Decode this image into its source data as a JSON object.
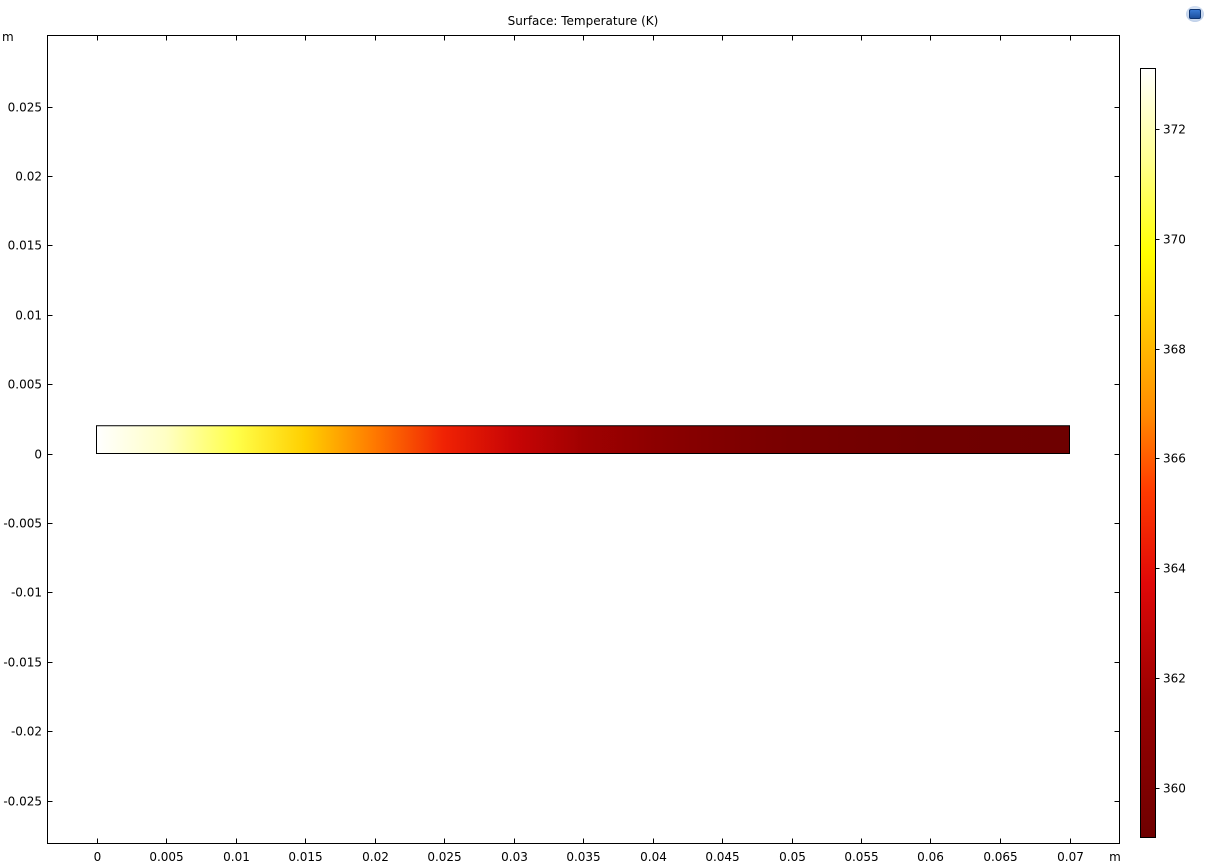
{
  "chart_data": {
    "type": "heatmap",
    "title": "Surface: Temperature (K)",
    "x_unit": "m",
    "y_unit": "m",
    "xlim": [
      -0.0035,
      0.0735
    ],
    "ylim": [
      -0.0281,
      0.0299
    ],
    "x_ticks": [
      0,
      0.005,
      0.01,
      0.015,
      0.02,
      0.025,
      0.03,
      0.035,
      0.04,
      0.045,
      0.05,
      0.055,
      0.06,
      0.065,
      0.07
    ],
    "x_tick_labels": [
      "0",
      "0.005",
      "0.01",
      "0.015",
      "0.02",
      "0.025",
      "0.03",
      "0.035",
      "0.04",
      "0.045",
      "0.05",
      "0.055",
      "0.06",
      "0.065",
      "0.07"
    ],
    "y_ticks": [
      0.025,
      0.02,
      0.015,
      0.01,
      0.005,
      0,
      -0.005,
      -0.01,
      -0.015,
      -0.02,
      -0.025
    ],
    "y_tick_labels": [
      "0.025",
      "0.02",
      "0.015",
      "0.01",
      "0.005",
      "0",
      "-0.005",
      "-0.01",
      "-0.015",
      "-0.02",
      "-0.025"
    ],
    "domain": {
      "x": [
        0,
        0.07
      ],
      "y": [
        0,
        0.002
      ]
    },
    "temperature_profile": {
      "x": [
        0,
        0.005,
        0.01,
        0.015,
        0.02,
        0.025,
        0.03,
        0.035,
        0.04,
        0.045,
        0.05,
        0.055,
        0.06,
        0.065,
        0.07
      ],
      "T": [
        373.1,
        372.2,
        370.6,
        368.6,
        366.5,
        364.6,
        363.0,
        361.8,
        360.9,
        360.2,
        359.7,
        359.4,
        359.2,
        359.15,
        359.1
      ]
    },
    "colorbar": {
      "min": 359.1,
      "max": 373.1,
      "ticks": [
        360,
        362,
        364,
        366,
        368,
        370,
        372
      ],
      "tick_labels": [
        "360",
        "362",
        "364",
        "366",
        "368",
        "370",
        "372"
      ],
      "colormap": "ThermalLight",
      "colormap_stops": [
        {
          "t": 0.0,
          "color": "#6e0000"
        },
        {
          "t": 0.18,
          "color": "#9a0000"
        },
        {
          "t": 0.33,
          "color": "#e00808"
        },
        {
          "t": 0.45,
          "color": "#ff3a00"
        },
        {
          "t": 0.55,
          "color": "#ff8a00"
        },
        {
          "t": 0.68,
          "color": "#ffd000"
        },
        {
          "t": 0.76,
          "color": "#ffff00"
        },
        {
          "t": 0.88,
          "color": "#ffff90"
        },
        {
          "t": 1.0,
          "color": "#ffffff"
        }
      ]
    }
  },
  "icons": {
    "app_icon": "comsol-logo-icon"
  }
}
